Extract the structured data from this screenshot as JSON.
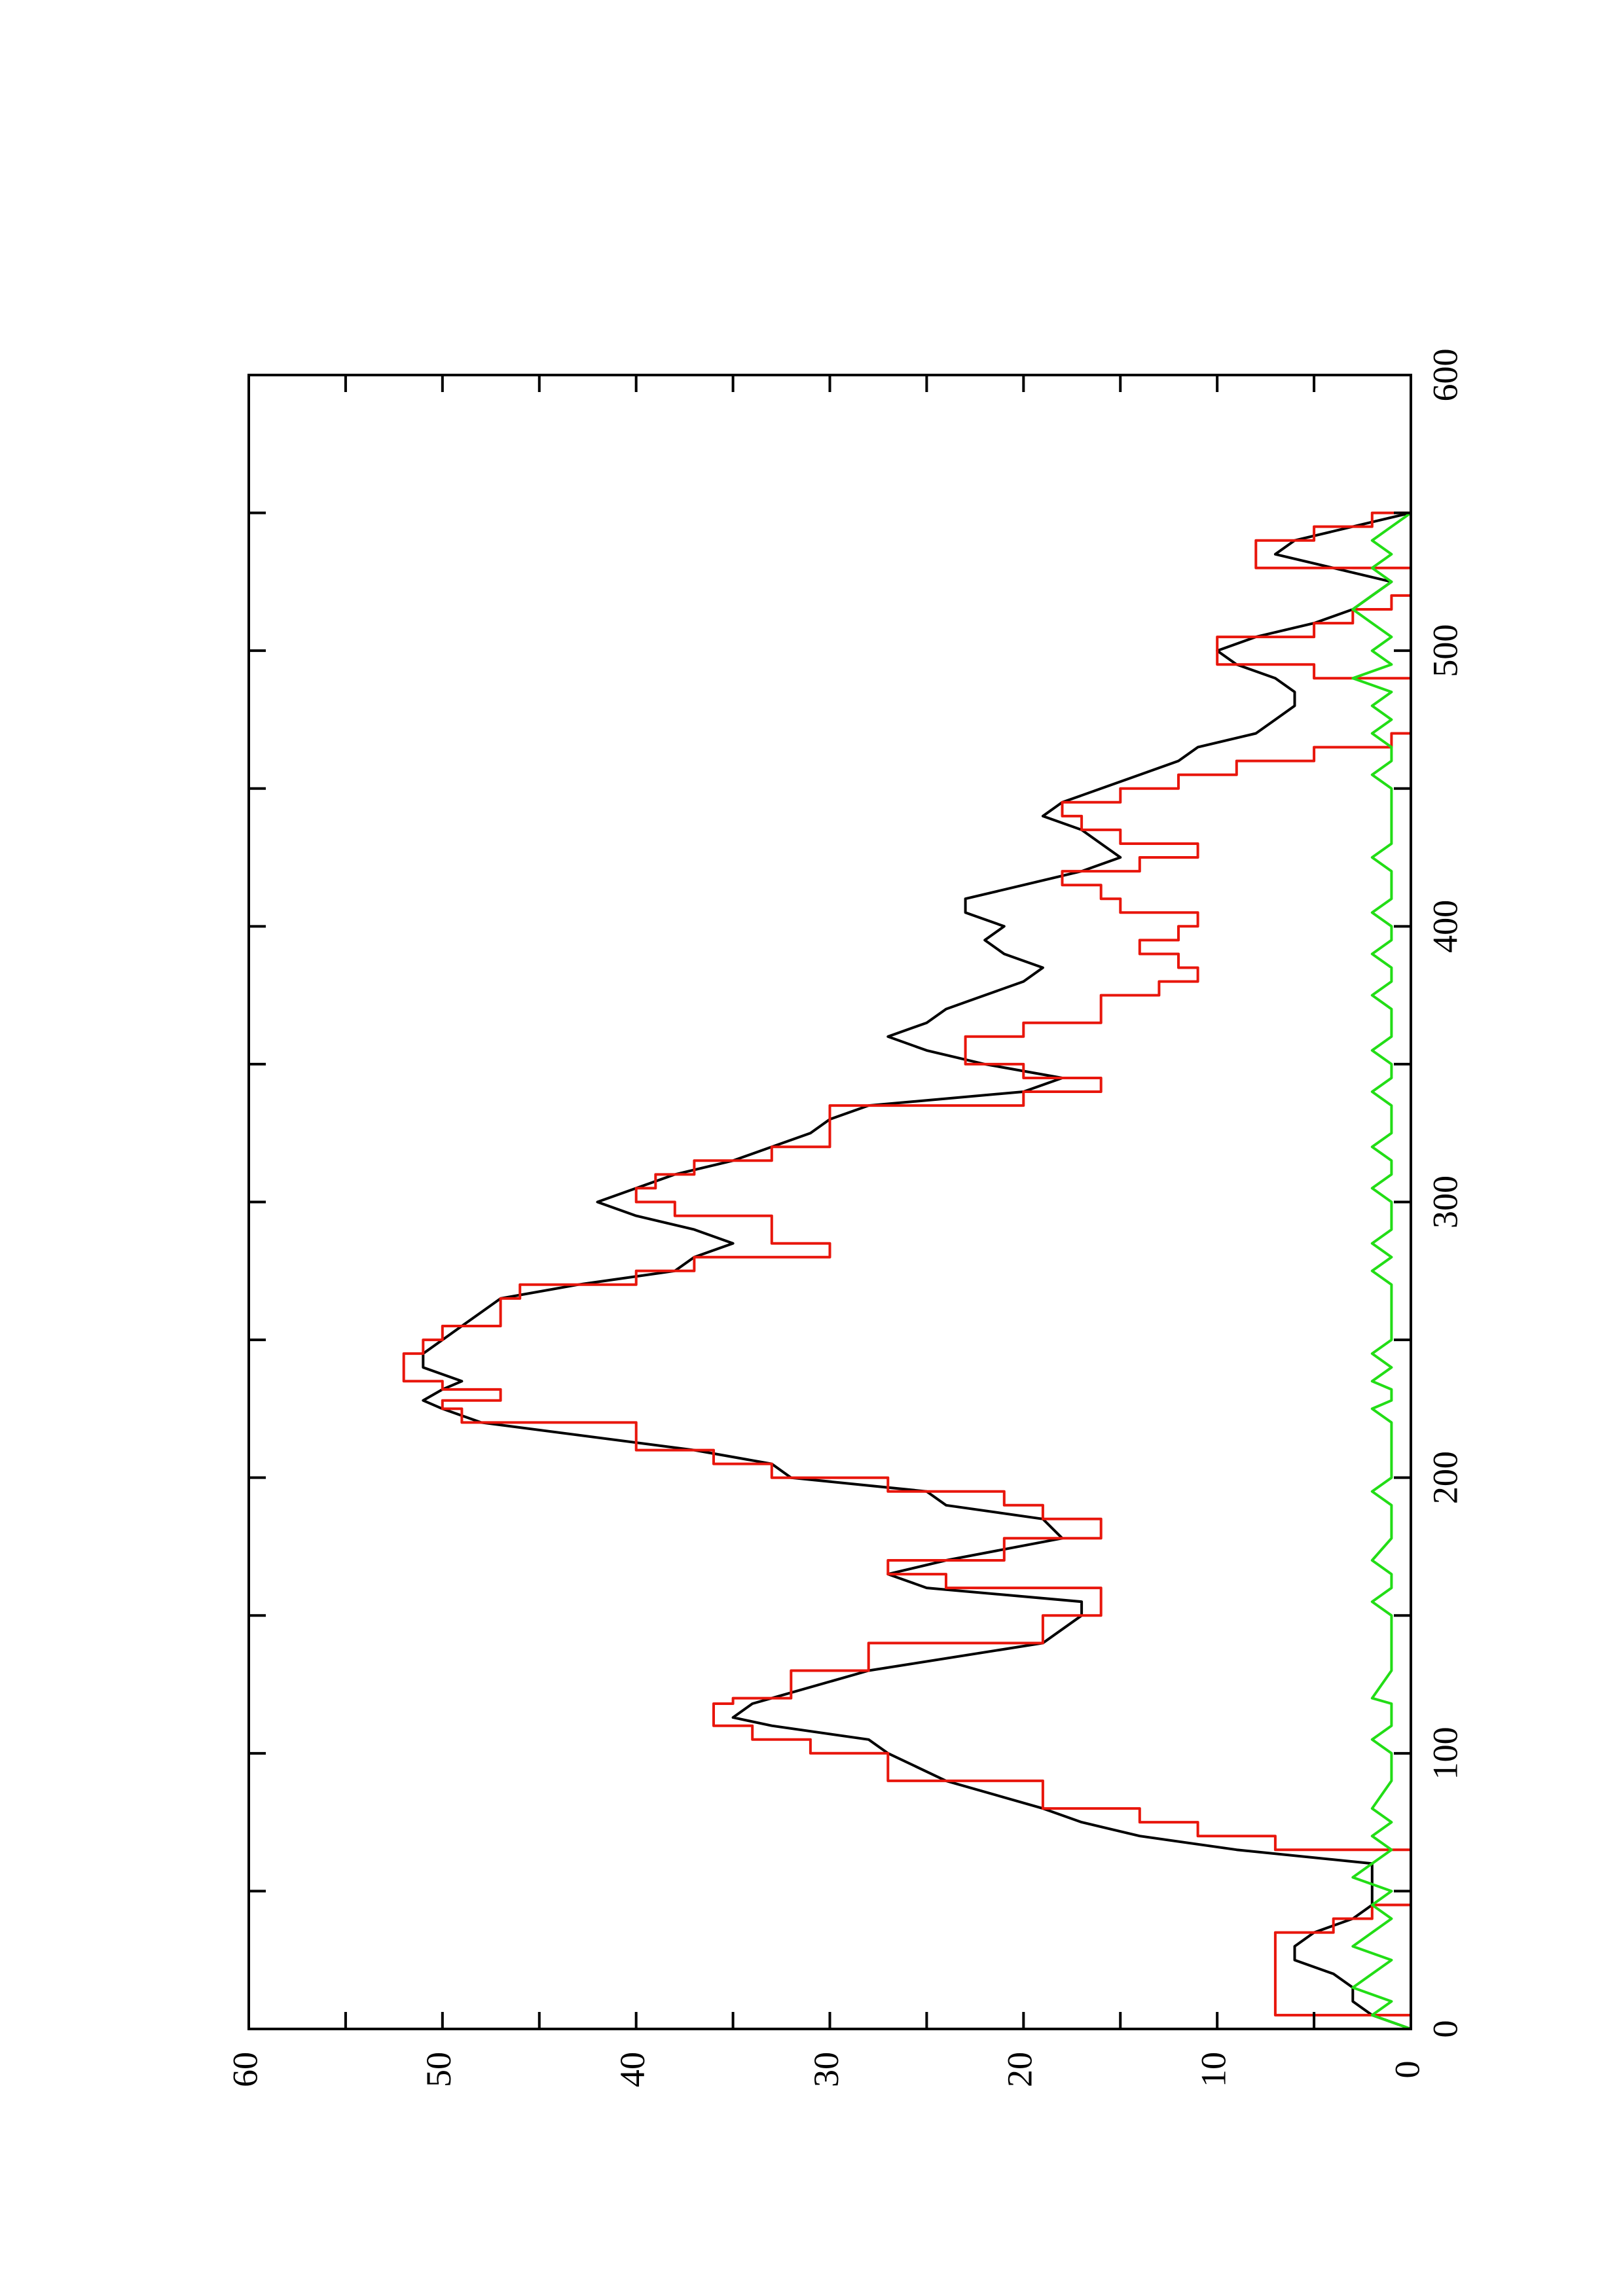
{
  "chart_data": {
    "type": "line",
    "title": "",
    "xlabel": "",
    "ylabel": "",
    "orientation": "rotated-90-ccw",
    "xlim": [
      0,
      600
    ],
    "ylim": [
      0,
      60
    ],
    "x_ticks": [
      0,
      100,
      200,
      300,
      400,
      500,
      600
    ],
    "y_ticks": [
      0,
      10,
      20,
      30,
      40,
      50,
      60
    ],
    "x_minor_ticks": [
      50,
      150,
      250,
      350,
      450,
      550
    ],
    "y_minor_ticks": [
      5,
      15,
      25,
      35,
      45,
      55
    ],
    "grid": false,
    "legend": "none",
    "series": [
      {
        "color": "#000000",
        "style": "solid",
        "x": [
          0,
          5,
          10,
          15,
          20,
          25,
          30,
          35,
          40,
          45,
          50,
          55,
          60,
          65,
          70,
          75,
          80,
          90,
          100,
          105,
          110,
          113,
          118,
          120,
          130,
          140,
          150,
          155,
          160,
          165,
          170,
          178,
          185,
          190,
          195,
          200,
          205,
          210,
          220,
          225,
          228,
          232,
          235,
          240,
          245,
          250,
          255,
          260,
          265,
          270,
          275,
          280,
          285,
          290,
          295,
          300,
          305,
          310,
          315,
          320,
          325,
          330,
          335,
          340,
          345,
          350,
          355,
          360,
          365,
          370,
          375,
          380,
          385,
          390,
          395,
          400,
          405,
          410,
          415,
          420,
          425,
          430,
          435,
          440,
          445,
          450,
          455,
          460,
          465,
          470,
          475,
          480,
          485,
          490,
          495,
          500,
          505,
          510,
          515,
          520,
          525,
          530,
          535,
          540,
          545,
          550
        ],
        "y": [
          0,
          2,
          3,
          3,
          4,
          6,
          6,
          5,
          3,
          2,
          2,
          2,
          2,
          9,
          14,
          17,
          19,
          24,
          27,
          28,
          33,
          35,
          34,
          33,
          28,
          19,
          17,
          17,
          25,
          27,
          24,
          18,
          19,
          24,
          25,
          32,
          33,
          37,
          48,
          50,
          51,
          50,
          49,
          51,
          51,
          50,
          49,
          48,
          47,
          43,
          38,
          37,
          35,
          37,
          40,
          42,
          40,
          38,
          35,
          33,
          31,
          30,
          28,
          20,
          18,
          22,
          25,
          27,
          25,
          24,
          22,
          20,
          19,
          21,
          22,
          21,
          23,
          23,
          20,
          17,
          15,
          16,
          17,
          19,
          18,
          16,
          14,
          12,
          11,
          8,
          7,
          6,
          6,
          7,
          9,
          10,
          8,
          5,
          3,
          2,
          1,
          4,
          7,
          6,
          3,
          0
        ]
      },
      {
        "color": "#e8160c",
        "style": "step",
        "x": [
          0,
          5,
          10,
          15,
          20,
          25,
          30,
          35,
          40,
          45,
          50,
          55,
          60,
          65,
          70,
          75,
          80,
          90,
          100,
          105,
          110,
          113,
          118,
          120,
          130,
          140,
          150,
          155,
          160,
          165,
          170,
          178,
          185,
          190,
          195,
          200,
          205,
          210,
          220,
          225,
          228,
          232,
          235,
          240,
          245,
          250,
          255,
          260,
          265,
          270,
          275,
          280,
          285,
          290,
          295,
          300,
          305,
          310,
          315,
          320,
          325,
          330,
          335,
          340,
          345,
          350,
          355,
          360,
          365,
          370,
          375,
          380,
          385,
          390,
          395,
          400,
          405,
          410,
          415,
          420,
          425,
          430,
          435,
          440,
          445,
          450,
          455,
          460,
          465,
          470,
          475,
          480,
          485,
          490,
          495,
          500,
          505,
          510,
          515,
          520,
          525,
          530,
          535,
          540,
          545,
          550
        ],
        "y": [
          0,
          7,
          7,
          7,
          7,
          7,
          7,
          4,
          2,
          0,
          0,
          0,
          0,
          7,
          11,
          14,
          19,
          27,
          31,
          34,
          36,
          36,
          35,
          32,
          28,
          19,
          16,
          16,
          24,
          27,
          21,
          16,
          19,
          21,
          27,
          33,
          36,
          40,
          49,
          50,
          47,
          50,
          52,
          52,
          51,
          50,
          47,
          47,
          46,
          40,
          37,
          30,
          33,
          33,
          38,
          40,
          39,
          37,
          33,
          30,
          30,
          30,
          20,
          16,
          20,
          23,
          23,
          20,
          16,
          16,
          13,
          11,
          12,
          14,
          12,
          11,
          15,
          16,
          18,
          14,
          11,
          15,
          17,
          18,
          15,
          12,
          9,
          5,
          1,
          0,
          0,
          0,
          0,
          5,
          10,
          10,
          5,
          3,
          1,
          0,
          0,
          8,
          8,
          5,
          2,
          0
        ]
      },
      {
        "color": "#22dd16",
        "style": "solid",
        "x": [
          0,
          5,
          10,
          15,
          20,
          25,
          30,
          35,
          40,
          45,
          50,
          55,
          60,
          65,
          70,
          75,
          80,
          90,
          100,
          105,
          110,
          113,
          118,
          120,
          130,
          140,
          150,
          155,
          160,
          165,
          170,
          178,
          185,
          190,
          195,
          200,
          205,
          210,
          220,
          225,
          228,
          232,
          235,
          240,
          245,
          250,
          255,
          260,
          265,
          270,
          275,
          280,
          285,
          290,
          295,
          300,
          305,
          310,
          315,
          320,
          325,
          330,
          335,
          340,
          345,
          350,
          355,
          360,
          365,
          370,
          375,
          380,
          385,
          390,
          395,
          400,
          405,
          410,
          415,
          420,
          425,
          430,
          435,
          440,
          445,
          450,
          455,
          460,
          465,
          470,
          475,
          480,
          485,
          490,
          495,
          500,
          505,
          510,
          515,
          520,
          525,
          530,
          535,
          540,
          545,
          550
        ],
        "y": [
          0,
          2,
          1,
          3,
          2,
          1,
          3,
          2,
          1,
          2,
          1,
          3,
          2,
          1,
          2,
          1,
          2,
          1,
          1,
          2,
          1,
          1,
          1,
          2,
          1,
          1,
          1,
          2,
          1,
          1,
          2,
          1,
          1,
          1,
          2,
          1,
          1,
          1,
          1,
          2,
          1,
          1,
          2,
          1,
          2,
          1,
          1,
          1,
          1,
          1,
          2,
          1,
          2,
          1,
          1,
          1,
          2,
          1,
          1,
          2,
          1,
          1,
          1,
          2,
          1,
          1,
          2,
          1,
          1,
          1,
          2,
          1,
          1,
          2,
          1,
          1,
          2,
          1,
          1,
          1,
          2,
          1,
          1,
          1,
          1,
          1,
          2,
          1,
          1,
          2,
          1,
          2,
          1,
          3,
          1,
          2,
          1,
          2,
          3,
          2,
          1,
          2,
          1,
          2,
          1,
          0
        ]
      }
    ]
  }
}
